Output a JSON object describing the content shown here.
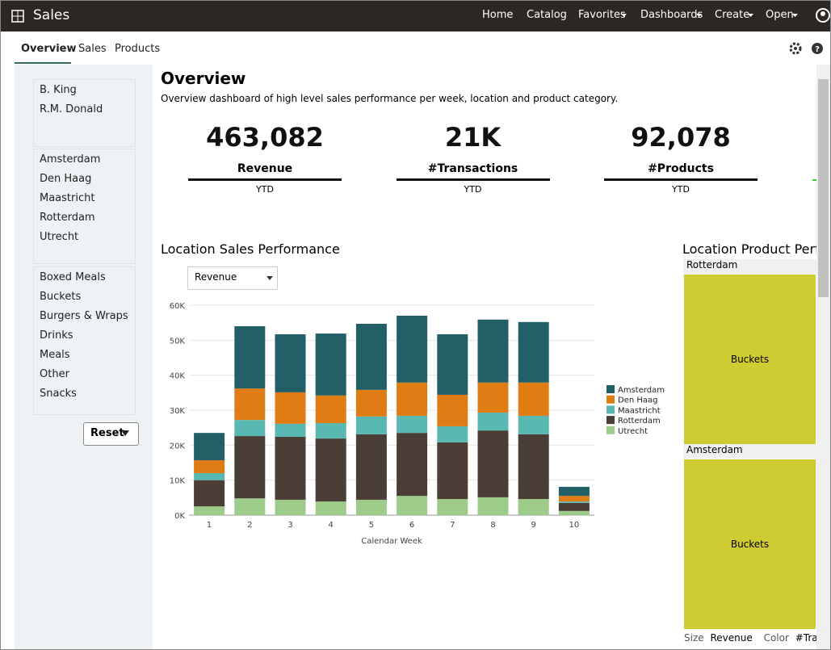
{
  "header": {
    "title": "Sales",
    "nav": [
      "Home",
      "Catalog",
      "Favorites",
      "Dashboards",
      "Create",
      "Open"
    ]
  },
  "tabs": [
    "Overview",
    "Sales",
    "Products"
  ],
  "filters": {
    "people": [
      "B. King",
      "R.M. Donald"
    ],
    "locations": [
      "Amsterdam",
      "Den Haag",
      "Maastricht",
      "Rotterdam",
      "Utrecht"
    ],
    "categories": [
      "Boxed Meals",
      "Buckets",
      "Burgers & Wraps",
      "Drinks",
      "Meals",
      "Other",
      "Snacks"
    ],
    "reset": "Reset"
  },
  "overview": {
    "title": "Overview",
    "description": "Overview dashboard of high level sales performance per week, location and product category.",
    "kpis": [
      {
        "value": "463,082",
        "label": "Revenue",
        "period": "YTD"
      },
      {
        "value": "21K",
        "label": "#Transactions",
        "period": "YTD"
      },
      {
        "value": "92,078",
        "label": "#Products",
        "period": "YTD"
      }
    ]
  },
  "chart_panel": {
    "title": "Location Sales Performance",
    "measure": "Revenue"
  },
  "chart_data": {
    "type": "stacked_bar",
    "x_label": "Calendar Week",
    "categories": [
      "1",
      "2",
      "3",
      "4",
      "5",
      "6",
      "7",
      "8",
      "9",
      "10"
    ],
    "series": [
      {
        "name": "Utrecht",
        "color": "#9ccb8a",
        "values": [
          2500,
          4800,
          4400,
          3900,
          4400,
          5500,
          4600,
          5100,
          4600,
          1200
        ]
      },
      {
        "name": "Rotterdam",
        "color": "#4a3e36",
        "values": [
          7500,
          17800,
          18000,
          18000,
          18700,
          18000,
          16200,
          19100,
          18500,
          2300
        ]
      },
      {
        "name": "Maastricht",
        "color": "#5ab8b2",
        "values": [
          2000,
          4600,
          3700,
          4400,
          5100,
          4900,
          4600,
          5100,
          5300,
          400
        ]
      },
      {
        "name": "Den Haag",
        "color": "#df7d14",
        "values": [
          3700,
          9000,
          9000,
          7900,
          7600,
          9500,
          9000,
          8600,
          9500,
          1600
        ]
      },
      {
        "name": "Amsterdam",
        "color": "#235f66",
        "values": [
          7800,
          17800,
          16600,
          17700,
          18900,
          19100,
          17300,
          18000,
          17300,
          2600
        ]
      }
    ],
    "ylim": [
      0,
      60000
    ],
    "yticks": [
      {
        "value": 0,
        "label": "0K"
      },
      {
        "value": 10000,
        "label": "10K"
      },
      {
        "value": 20000,
        "label": "20K"
      },
      {
        "value": 30000,
        "label": "30K"
      },
      {
        "value": 40000,
        "label": "40K"
      },
      {
        "value": 50000,
        "label": "50K"
      },
      {
        "value": 60000,
        "label": "60K"
      }
    ],
    "grid": true
  },
  "treemap_panel": {
    "title": "Location Product Perfo",
    "groups": [
      {
        "name": "Rotterdam",
        "cell": "Buckets"
      },
      {
        "name": "Amsterdam",
        "cell": "Buckets"
      }
    ],
    "footer": {
      "size_label": "Size",
      "size_value": "Revenue",
      "color_label": "Color",
      "color_value": "#Transa"
    }
  }
}
